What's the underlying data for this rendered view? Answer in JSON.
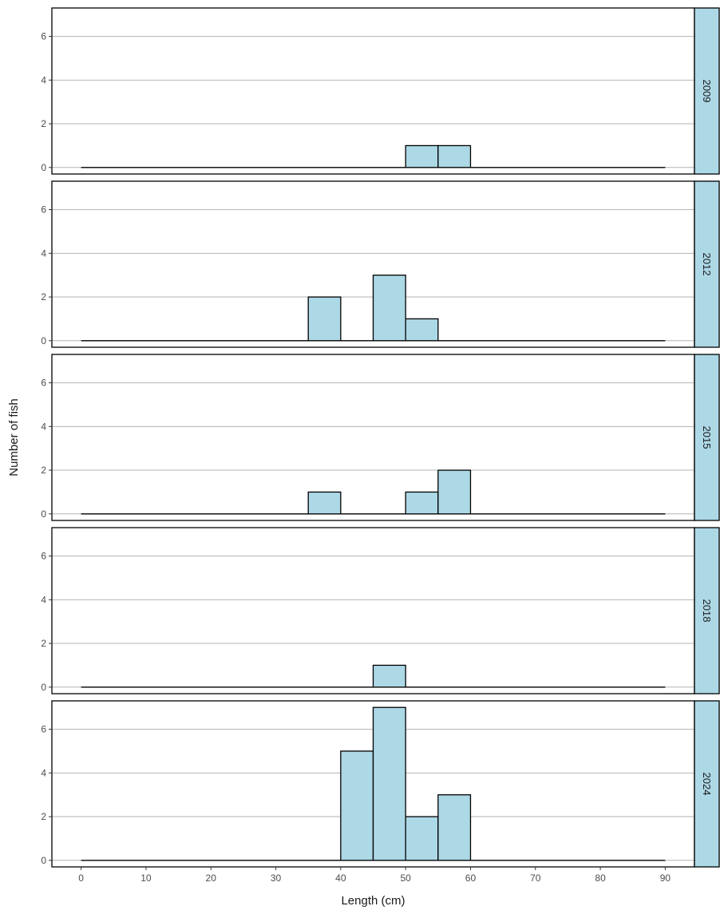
{
  "chart_data": {
    "type": "bar",
    "subtype": "faceted-histogram",
    "xlabel": "Length (cm)",
    "ylabel": "Number of fish",
    "xlim": [
      -4.5,
      94.5
    ],
    "ylim": [
      -0.3,
      7.3
    ],
    "x_ticks": [
      0,
      10,
      20,
      30,
      40,
      50,
      60,
      70,
      80,
      90
    ],
    "y_ticks": [
      0,
      2,
      4,
      6
    ],
    "bin_width": 5,
    "baseline_range": [
      0,
      90
    ],
    "grid": "horizontal major",
    "colors": {
      "bar_fill": "#add8e6",
      "bar_stroke": "#000000",
      "strip_fill": "#add8e6",
      "grid": "#b3b3b3"
    },
    "facets": [
      {
        "label": "2009",
        "bins": [
          {
            "x": 50,
            "count": 1
          },
          {
            "x": 55,
            "count": 1
          }
        ]
      },
      {
        "label": "2012",
        "bins": [
          {
            "x": 35,
            "count": 2
          },
          {
            "x": 45,
            "count": 3
          },
          {
            "x": 50,
            "count": 1
          }
        ]
      },
      {
        "label": "2015",
        "bins": [
          {
            "x": 35,
            "count": 1
          },
          {
            "x": 50,
            "count": 1
          },
          {
            "x": 55,
            "count": 2
          }
        ]
      },
      {
        "label": "2018",
        "bins": [
          {
            "x": 45,
            "count": 1
          }
        ]
      },
      {
        "label": "2024",
        "bins": [
          {
            "x": 40,
            "count": 5
          },
          {
            "x": 45,
            "count": 7
          },
          {
            "x": 50,
            "count": 2
          },
          {
            "x": 55,
            "count": 3
          }
        ]
      }
    ]
  }
}
